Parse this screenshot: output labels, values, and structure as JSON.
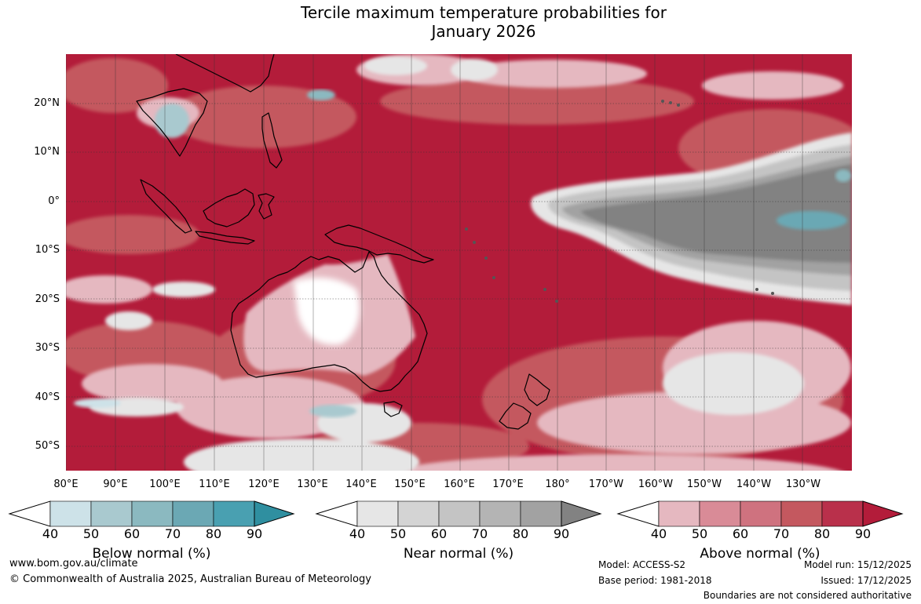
{
  "title": {
    "line1": "Tercile maximum temperature probabilities for",
    "line2": "January 2026"
  },
  "latitude_labels": [
    "20°N",
    "10°N",
    "0°",
    "10°S",
    "20°S",
    "30°S",
    "40°S",
    "50°S"
  ],
  "longitude_labels": [
    "80°E",
    "90°E",
    "100°E",
    "110°E",
    "120°E",
    "130°E",
    "140°E",
    "150°E",
    "160°E",
    "170°E",
    "180°",
    "170°W",
    "160°W",
    "150°W",
    "140°W",
    "130°W"
  ],
  "colorbars": [
    {
      "name": "below",
      "title": "Below normal (%)",
      "ticks": [
        "40",
        "50",
        "60",
        "70",
        "80",
        "90"
      ],
      "colors": [
        "#ffffff",
        "#cde2e8",
        "#a9c9cf",
        "#8bb9c0",
        "#6ba8b4",
        "#49a0b1",
        "#2f8fa0"
      ]
    },
    {
      "name": "near",
      "title": "Near normal (%)",
      "ticks": [
        "40",
        "50",
        "60",
        "70",
        "80",
        "90"
      ],
      "colors": [
        "#ffffff",
        "#e6e6e6",
        "#d4d4d4",
        "#c4c4c4",
        "#b4b4b4",
        "#a2a2a2",
        "#828282"
      ]
    },
    {
      "name": "above",
      "title": "Above normal (%)",
      "ticks": [
        "40",
        "50",
        "60",
        "70",
        "80",
        "90"
      ],
      "colors": [
        "#ffffff",
        "#e5b8c0",
        "#d98b97",
        "#cf727f",
        "#c4585f",
        "#b9304b",
        "#b31c3a"
      ]
    }
  ],
  "footer": {
    "website": "www.bom.gov.au/climate",
    "copyright": "© Commonwealth of Australia 2025, Australian Bureau of Meteorology",
    "model": "Model: ACCESS-S2",
    "base_period": "Base period: 1981-2018",
    "model_run": "Model run: 15/12/2025",
    "issued": "Issued: 17/12/2025",
    "disclaimer": "Boundaries are not considered authoritative"
  },
  "colors": {
    "above_dark": "#b31c3a",
    "above_mid": "#c4585f",
    "above_light": "#e5b8c0",
    "near_dark": "#828282",
    "near_mid": "#a2a2a2",
    "near_light": "#e6e6e6",
    "below": "#6ba8b4",
    "below_light": "#cde2e8",
    "land_outline": "#000000"
  }
}
